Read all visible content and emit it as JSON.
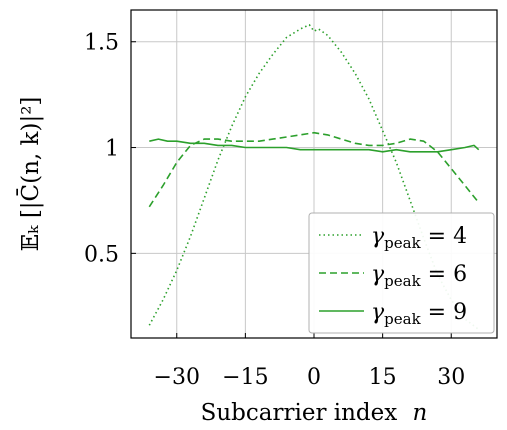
{
  "chart_data": {
    "type": "line",
    "xlabel": "Subcarrier index",
    "xlabel_var": "n",
    "ylabel": "𝔼ₖ [|C̄(n, k)|²]",
    "xlim": [
      -40,
      40
    ],
    "ylim": [
      0.1,
      1.65
    ],
    "x_ticks": [
      -30,
      -15,
      0,
      15,
      30
    ],
    "x_tick_labels": [
      "−30",
      "−15",
      "0",
      "15",
      "30"
    ],
    "y_ticks": [
      0.5,
      1,
      1.5
    ],
    "y_tick_labels": [
      "0.5",
      "1",
      "1.5"
    ],
    "grid": true,
    "legend_position": "bottom-right",
    "color": "#2ca02c",
    "series": [
      {
        "name": "γpeak = 4",
        "symbol": "γ",
        "subscript": "peak",
        "value": "4",
        "style": "dotted",
        "x": [
          -36,
          -33,
          -30,
          -27,
          -24,
          -21,
          -18,
          -15,
          -12,
          -9,
          -6,
          -3,
          -1,
          0,
          1,
          3,
          6,
          9,
          12,
          15,
          18,
          21,
          24,
          27,
          30,
          33,
          36
        ],
        "y": [
          0.16,
          0.28,
          0.42,
          0.58,
          0.76,
          0.94,
          1.1,
          1.24,
          1.35,
          1.44,
          1.52,
          1.56,
          1.58,
          1.55,
          1.56,
          1.53,
          1.45,
          1.35,
          1.23,
          1.08,
          0.93,
          0.75,
          0.57,
          0.4,
          0.28,
          0.19,
          0.14
        ]
      },
      {
        "name": "γpeak = 6",
        "symbol": "γ",
        "subscript": "peak",
        "value": "6",
        "style": "dashed",
        "x": [
          -36,
          -33,
          -30,
          -27,
          -24,
          -21,
          -18,
          -15,
          -12,
          -9,
          -6,
          -3,
          0,
          3,
          6,
          9,
          12,
          15,
          18,
          21,
          24,
          27,
          30,
          33,
          36
        ],
        "y": [
          0.72,
          0.82,
          0.93,
          1.01,
          1.04,
          1.04,
          1.03,
          1.03,
          1.03,
          1.04,
          1.05,
          1.06,
          1.07,
          1.06,
          1.04,
          1.02,
          1.01,
          1.01,
          1.02,
          1.04,
          1.03,
          0.98,
          0.9,
          0.82,
          0.74
        ]
      },
      {
        "name": "γpeak = 9",
        "symbol": "γ",
        "subscript": "peak",
        "value": "9",
        "style": "solid",
        "x": [
          -36,
          -34,
          -32,
          -30,
          -27,
          -24,
          -21,
          -18,
          -15,
          -12,
          -9,
          -6,
          -3,
          0,
          3,
          6,
          9,
          12,
          15,
          18,
          21,
          24,
          27,
          30,
          33,
          35,
          36
        ],
        "y": [
          1.03,
          1.04,
          1.03,
          1.03,
          1.02,
          1.02,
          1.01,
          1.01,
          1.0,
          1.0,
          1.0,
          1.0,
          0.99,
          0.99,
          0.99,
          0.99,
          0.99,
          0.99,
          0.98,
          0.99,
          0.98,
          0.98,
          0.98,
          0.99,
          1.0,
          1.01,
          0.99
        ]
      }
    ]
  }
}
